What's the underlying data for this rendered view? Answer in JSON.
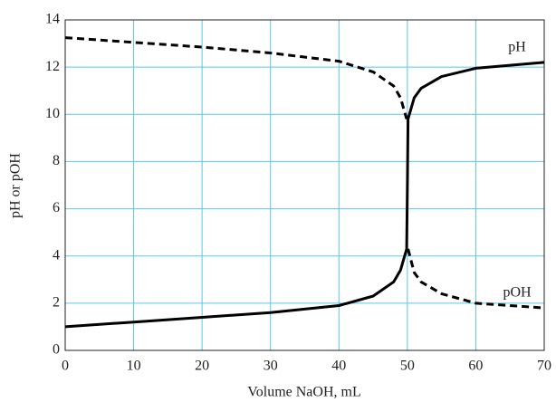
{
  "chart_data": {
    "type": "line",
    "x_label": "Volume NaOH, mL",
    "y_label": "pH or pOH",
    "x": [
      0,
      10,
      20,
      30,
      40,
      45,
      48,
      49,
      49.9,
      50,
      50.1,
      51,
      52,
      55,
      60,
      70
    ],
    "series": [
      {
        "name": "pH",
        "color": "#000000",
        "dashed": false,
        "values": [
          1.0,
          1.2,
          1.4,
          1.6,
          1.9,
          2.3,
          2.9,
          3.4,
          4.3,
          7.0,
          9.8,
          10.7,
          11.1,
          11.6,
          11.95,
          12.2
        ]
      },
      {
        "name": "pOH",
        "color": "#000000",
        "dashed": true,
        "values": [
          13.25,
          13.05,
          12.85,
          12.6,
          12.25,
          11.8,
          11.2,
          10.7,
          9.8,
          null,
          4.3,
          3.3,
          2.9,
          2.4,
          2.0,
          1.8
        ]
      }
    ],
    "xlim": [
      0,
      70
    ],
    "xticks": [
      0,
      10,
      20,
      30,
      40,
      50,
      60,
      70
    ],
    "ylim": [
      0,
      14
    ],
    "yticks": [
      0,
      2,
      4,
      6,
      8,
      10,
      12,
      14
    ],
    "grid": true,
    "grid_color": "#5cc6e6"
  }
}
